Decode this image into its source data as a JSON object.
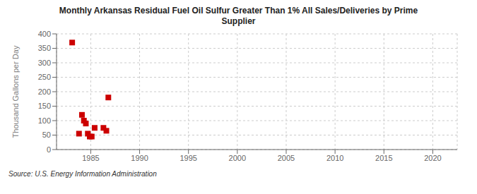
{
  "chart_data": {
    "type": "scatter",
    "title": "Monthly Arkansas Residual Fuel Oil Sulfur Greater Than 1% All Sales/Deliveries by Prime\nSupplier",
    "y_label": "Thousand Gallons per Day",
    "annotations": [
      "Source: U.S. Energy Information Administration"
    ],
    "x": [
      1983.1,
      1983.8,
      1984.1,
      1984.3,
      1984.5,
      1984.7,
      1984.9,
      1985.1,
      1985.4,
      1986.3,
      1986.6,
      1986.8
    ],
    "values": [
      370,
      55,
      120,
      100,
      90,
      55,
      45,
      45,
      75,
      75,
      65,
      180
    ],
    "color": "#cc0000",
    "marker": "square",
    "xlim": [
      1981.5,
      2022.5
    ],
    "ylim": [
      0,
      400
    ],
    "xticks": [
      1985,
      1990,
      1995,
      2000,
      2005,
      2010,
      2015,
      2020
    ],
    "yticks": [
      0,
      50,
      100,
      150,
      200,
      250,
      300,
      350,
      400
    ],
    "grid": true
  }
}
